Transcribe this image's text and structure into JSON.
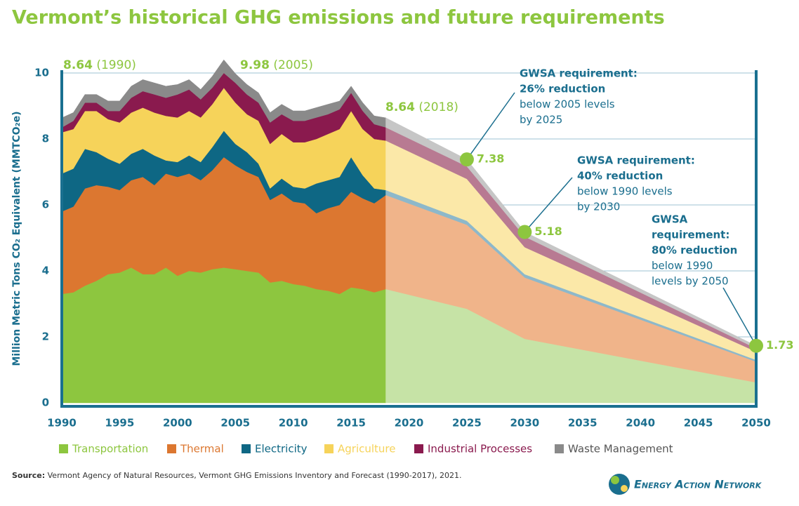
{
  "chart_data": {
    "type": "stacked_area",
    "title": "Vermont’s historical GHG emissions and future requirements",
    "y_label": "Million Metric Tons CO₂ Equivalent (MMTCO₂e)",
    "x": [
      1990,
      1991,
      1992,
      1993,
      1994,
      1995,
      1996,
      1997,
      1998,
      1999,
      2000,
      2001,
      2002,
      2003,
      2004,
      2005,
      2006,
      2007,
      2008,
      2009,
      2010,
      2011,
      2012,
      2013,
      2014,
      2015,
      2016,
      2017,
      2018,
      2025,
      2030,
      2050
    ],
    "forecast_from": 2018,
    "series": [
      {
        "name": "Transportation",
        "color": "#8dc63f",
        "forecast_color": "#c6e3a6",
        "values": [
          3.3,
          3.35,
          3.55,
          3.7,
          3.9,
          3.95,
          4.1,
          3.9,
          3.9,
          4.1,
          3.85,
          4.0,
          3.95,
          4.05,
          4.1,
          4.05,
          4.0,
          3.95,
          3.65,
          3.7,
          3.6,
          3.55,
          3.45,
          3.4,
          3.3,
          3.5,
          3.45,
          3.35,
          3.45,
          2.85,
          1.94,
          0.62
        ]
      },
      {
        "name": "Thermal",
        "color": "#dc7730",
        "forecast_color": "#f0b48a",
        "values": [
          2.5,
          2.6,
          2.95,
          2.9,
          2.65,
          2.5,
          2.65,
          2.95,
          2.7,
          2.85,
          3.0,
          2.95,
          2.8,
          3.0,
          3.35,
          3.15,
          3.0,
          2.9,
          2.5,
          2.65,
          2.5,
          2.5,
          2.3,
          2.5,
          2.7,
          2.9,
          2.75,
          2.7,
          2.85,
          2.55,
          1.86,
          0.63
        ]
      },
      {
        "name": "Electricity",
        "color": "#0e6784",
        "forecast_color": "#8db8ca",
        "values": [
          1.15,
          1.15,
          1.2,
          1.0,
          0.85,
          0.8,
          0.8,
          0.85,
          0.9,
          0.4,
          0.45,
          0.55,
          0.55,
          0.7,
          0.8,
          0.65,
          0.6,
          0.4,
          0.35,
          0.45,
          0.45,
          0.45,
          0.9,
          0.85,
          0.85,
          1.05,
          0.7,
          0.45,
          0.15,
          0.12,
          0.1,
          0.05
        ]
      },
      {
        "name": "Agriculture",
        "color": "#f6d35a",
        "forecast_color": "#fbe8a8",
        "values": [
          1.25,
          1.2,
          1.15,
          1.25,
          1.2,
          1.25,
          1.25,
          1.25,
          1.3,
          1.35,
          1.35,
          1.35,
          1.35,
          1.3,
          1.3,
          1.25,
          1.15,
          1.3,
          1.35,
          1.35,
          1.35,
          1.4,
          1.35,
          1.4,
          1.45,
          1.4,
          1.4,
          1.5,
          1.5,
          1.27,
          0.82,
          0.25
        ]
      },
      {
        "name": "Industrial Processes",
        "color": "#8a1a4e",
        "forecast_color": "#b87a92",
        "values": [
          0.15,
          0.25,
          0.25,
          0.25,
          0.25,
          0.35,
          0.45,
          0.5,
          0.55,
          0.55,
          0.7,
          0.65,
          0.55,
          0.5,
          0.45,
          0.6,
          0.6,
          0.55,
          0.65,
          0.6,
          0.65,
          0.65,
          0.65,
          0.6,
          0.6,
          0.55,
          0.55,
          0.45,
          0.4,
          0.38,
          0.32,
          0.1
        ]
      },
      {
        "name": "Waste Management",
        "color": "#8a8a8a",
        "forecast_color": "#c6c6c6",
        "values": [
          0.29,
          0.25,
          0.25,
          0.25,
          0.3,
          0.3,
          0.35,
          0.35,
          0.35,
          0.35,
          0.3,
          0.3,
          0.3,
          0.35,
          0.4,
          0.28,
          0.3,
          0.3,
          0.3,
          0.3,
          0.3,
          0.3,
          0.3,
          0.3,
          0.25,
          0.2,
          0.25,
          0.25,
          0.29,
          0.21,
          0.14,
          0.08
        ]
      }
    ],
    "xlim": [
      1990,
      2050
    ],
    "xticks": [
      1990,
      1995,
      2000,
      2005,
      2010,
      2015,
      2020,
      2025,
      2030,
      2035,
      2040,
      2045,
      2050
    ],
    "ylim": [
      0,
      10
    ],
    "yticks": [
      0,
      2,
      4,
      6,
      8,
      10
    ],
    "grid": true,
    "annotations": [
      {
        "value": 8.64,
        "note": "(1990)"
      },
      {
        "value": 9.98,
        "note": "(2005)"
      },
      {
        "value": 8.64,
        "note": "(2018)"
      }
    ],
    "targets": [
      {
        "x": 2025,
        "value": 7.38,
        "title_lines": [
          "GWSA requirement:",
          "26% reduction"
        ],
        "detail_lines": [
          "below 2005 levels",
          "by 2025"
        ]
      },
      {
        "x": 2030,
        "value": 5.18,
        "title_lines": [
          "GWSA requirement:",
          "40% reduction"
        ],
        "detail_lines": [
          "below 1990 levels",
          "by 2030"
        ]
      },
      {
        "x": 2050,
        "value": 1.73,
        "title_lines": [
          "GWSA",
          "requirement:",
          "80% reduction"
        ],
        "detail_lines": [
          "below 1990",
          "levels by 2050"
        ]
      }
    ],
    "source": {
      "label": "Source:",
      "text": "Vermont Agency of Natural Resources, Vermont GHG Emissions Inventory and Forecast (1990-2017), 2021."
    },
    "logo": "Energy Action Network"
  }
}
